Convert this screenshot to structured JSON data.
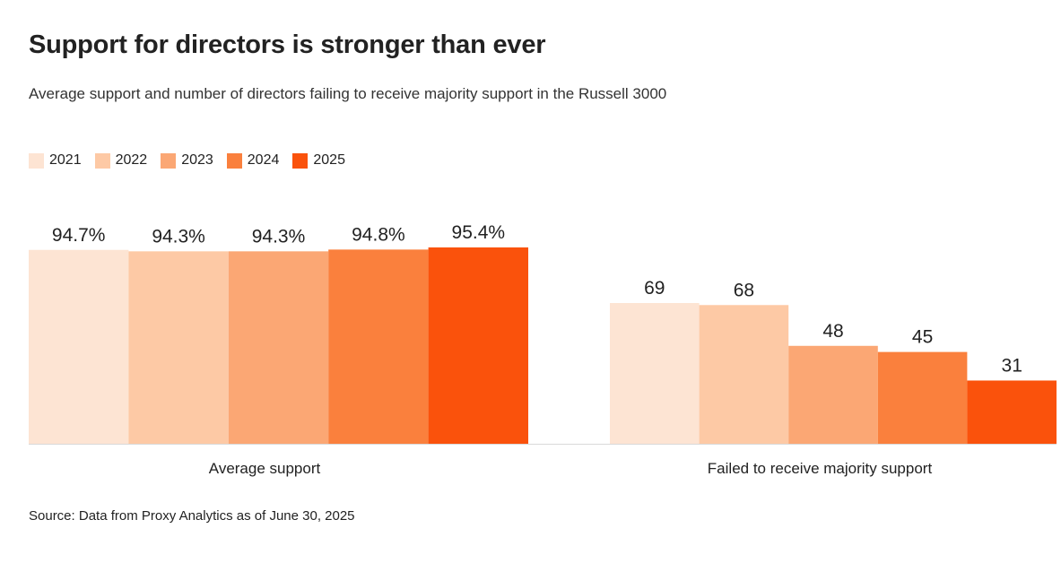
{
  "title": "Support for directors is stronger than ever",
  "subtitle": "Average support and number of directors failing to receive majority support in the Russell 3000",
  "source": "Source: Data from Proxy Analytics as of June 30, 2025",
  "legend": [
    {
      "label": "2021",
      "color": "#FDE4D3"
    },
    {
      "label": "2022",
      "color": "#FDC9A5"
    },
    {
      "label": "2023",
      "color": "#FBA774"
    },
    {
      "label": "2024",
      "color": "#FA803D"
    },
    {
      "label": "2025",
      "color": "#FA520C"
    }
  ],
  "chart_data": [
    {
      "type": "bar",
      "title": "Average support",
      "categories": [
        "2021",
        "2022",
        "2023",
        "2024",
        "2025"
      ],
      "values": [
        94.7,
        94.3,
        94.3,
        94.8,
        95.4
      ],
      "labels": [
        "94.7%",
        "94.3%",
        "94.3%",
        "94.8%",
        "95.4%"
      ],
      "unit": "%",
      "ylim": [
        0,
        100
      ]
    },
    {
      "type": "bar",
      "title": "Failed to receive majority support",
      "categories": [
        "2021",
        "2022",
        "2023",
        "2024",
        "2025"
      ],
      "values": [
        69,
        68,
        48,
        45,
        31
      ],
      "labels": [
        "69",
        "68",
        "48",
        "45",
        "31"
      ],
      "ylim": [
        0,
        69
      ]
    }
  ]
}
